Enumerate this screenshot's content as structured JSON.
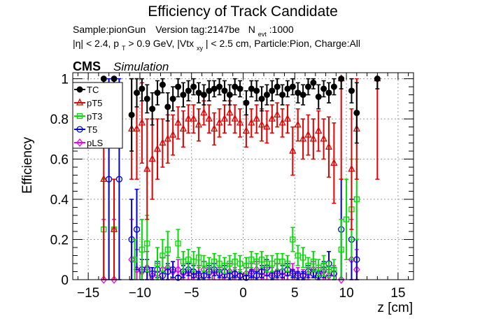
{
  "header": {
    "title": "Efficiency of Track Candidate",
    "sample_line": {
      "sample": "Sample:pionGun",
      "version": "Version tag:2147be",
      "nevt_symbol": "N",
      "nevt_sub": "evt",
      "nevt_value": ":1000"
    },
    "cuts_line": {
      "eta": "|η| < 2.4, p",
      "pt_sub": "T",
      "pt_rest": " > 0.9 GeV, |Vtx",
      "vtx_sub": "xy",
      "rest": "| < 2.5 cm, Particle:Pion, Charge:All"
    },
    "cms": "CMS",
    "simulation": "Simulation"
  },
  "chart_data": {
    "type": "scatter",
    "xlabel": "z [cm]",
    "ylabel": "Efficiency",
    "xlim": [
      -16.5,
      16.5
    ],
    "ylim": [
      0,
      1.03
    ],
    "xticks": [
      -15,
      -10,
      -5,
      0,
      5,
      10,
      15
    ],
    "xtick_labels": [
      "−15",
      "−10",
      "−5",
      "0",
      "5",
      "10",
      "15"
    ],
    "yticks": [
      0,
      0.2,
      0.4,
      0.6,
      0.8,
      1
    ],
    "ytick_labels": [
      "0",
      "0.2",
      "0.4",
      "0.6",
      "0.8",
      "1"
    ],
    "grid": true,
    "legend_position": "top-left",
    "series": [
      {
        "name": "TC",
        "color": "#000000",
        "marker": "filled-circle",
        "x": [
          -13.5,
          -12.5,
          -10.8,
          -10.3,
          -9.8,
          -9.3,
          -8.8,
          -8.3,
          -7.8,
          -7.3,
          -6.8,
          -6.3,
          -5.8,
          -5.3,
          -4.8,
          -4.3,
          -3.8,
          -3.3,
          -2.8,
          -2.3,
          -1.8,
          -1.3,
          -0.8,
          -0.3,
          0.3,
          0.8,
          1.3,
          1.8,
          2.3,
          2.8,
          3.3,
          3.8,
          4.3,
          4.8,
          5.3,
          5.8,
          6.3,
          6.8,
          7.3,
          7.8,
          8.3,
          8.8,
          9.5,
          10.5,
          11.0,
          13.0
        ],
        "y": [
          1.0,
          1.0,
          0.82,
          0.93,
          0.95,
          0.9,
          0.85,
          0.93,
          0.97,
          0.86,
          0.9,
          0.96,
          0.92,
          0.94,
          0.96,
          0.93,
          0.92,
          0.94,
          0.95,
          0.96,
          0.94,
          0.92,
          0.96,
          0.95,
          0.88,
          0.95,
          0.94,
          0.9,
          0.92,
          0.94,
          0.96,
          0.92,
          0.95,
          0.96,
          0.93,
          0.92,
          0.96,
          0.98,
          0.91,
          0.95,
          0.93,
          0.96,
          1.0,
          0.94,
          0.83,
          1.0
        ],
        "err": [
          0.05,
          0.05,
          0.18,
          0.07,
          0.06,
          0.07,
          0.08,
          0.06,
          0.04,
          0.07,
          0.06,
          0.05,
          0.06,
          0.05,
          0.04,
          0.05,
          0.05,
          0.05,
          0.04,
          0.04,
          0.05,
          0.05,
          0.04,
          0.04,
          0.06,
          0.04,
          0.05,
          0.06,
          0.05,
          0.05,
          0.04,
          0.05,
          0.04,
          0.04,
          0.05,
          0.05,
          0.04,
          0.03,
          0.06,
          0.04,
          0.05,
          0.04,
          0.05,
          0.06,
          0.15,
          0.05
        ]
      },
      {
        "name": "pT5",
        "color": "#e00000",
        "marker": "open-triangle",
        "x": [
          -13.5,
          -12.5,
          -10.8,
          -10.3,
          -9.8,
          -9.3,
          -8.8,
          -8.3,
          -7.8,
          -7.3,
          -6.8,
          -6.3,
          -5.8,
          -5.3,
          -4.8,
          -4.3,
          -3.8,
          -3.3,
          -2.8,
          -2.3,
          -1.8,
          -1.3,
          -0.8,
          -0.3,
          0.3,
          0.8,
          1.3,
          1.8,
          2.3,
          2.8,
          3.3,
          3.8,
          4.3,
          4.8,
          5.3,
          5.8,
          6.3,
          6.8,
          7.3,
          7.8,
          8.3,
          8.8,
          9.5,
          10.5,
          11.0,
          13.0
        ],
        "y": [
          0.5,
          0.25,
          0.75,
          0.75,
          0.78,
          0.55,
          0.6,
          0.65,
          0.68,
          0.7,
          0.72,
          0.78,
          0.75,
          0.8,
          0.8,
          0.77,
          0.83,
          0.8,
          0.75,
          0.78,
          0.8,
          0.83,
          0.8,
          0.78,
          0.74,
          0.78,
          0.8,
          0.77,
          0.76,
          0.8,
          0.82,
          0.78,
          0.8,
          0.64,
          0.77,
          0.7,
          0.72,
          0.7,
          0.74,
          0.7,
          0.66,
          0.58,
          1.0,
          0.55,
          0.75,
          1.0
        ],
        "err": [
          0.5,
          0.25,
          0.25,
          0.25,
          0.2,
          0.25,
          0.2,
          0.15,
          0.12,
          0.12,
          0.1,
          0.08,
          0.09,
          0.07,
          0.07,
          0.08,
          0.06,
          0.07,
          0.08,
          0.07,
          0.07,
          0.06,
          0.07,
          0.07,
          0.08,
          0.07,
          0.07,
          0.08,
          0.08,
          0.07,
          0.06,
          0.07,
          0.07,
          0.12,
          0.08,
          0.1,
          0.1,
          0.1,
          0.1,
          0.1,
          0.15,
          0.2,
          0.5,
          0.3,
          0.25,
          0.5
        ]
      },
      {
        "name": "pT3",
        "color": "#00dd00",
        "marker": "open-square",
        "x": [
          -13.5,
          -12.5,
          -10.5,
          -9.8,
          -9.3,
          -8.3,
          -7.8,
          -7.3,
          -6.3,
          -5.8,
          -5.3,
          -4.8,
          -4.3,
          -3.8,
          -3.3,
          -2.8,
          -2.3,
          -1.8,
          -1.3,
          -0.8,
          -0.3,
          0.3,
          0.8,
          1.3,
          1.8,
          2.3,
          2.8,
          3.3,
          3.8,
          4.3,
          4.8,
          5.3,
          5.8,
          6.3,
          6.8,
          7.3,
          7.8,
          8.3,
          8.8,
          9.5,
          10.0,
          10.5,
          11.0
        ],
        "y": [
          0.25,
          0.25,
          0.1,
          0.15,
          0.18,
          0.08,
          0.12,
          0.15,
          0.18,
          0.09,
          0.1,
          0.09,
          0.11,
          0.08,
          0.07,
          0.09,
          0.08,
          0.07,
          0.08,
          0.09,
          0.08,
          0.07,
          0.1,
          0.09,
          0.1,
          0.08,
          0.08,
          0.09,
          0.09,
          0.08,
          0.2,
          0.12,
          0.11,
          0.07,
          0.09,
          0.06,
          0.07,
          0.05,
          0.05,
          0.15,
          0.3,
          0.35,
          0.4
        ],
        "err": [
          0.25,
          0.25,
          0.1,
          0.15,
          0.14,
          0.08,
          0.08,
          0.09,
          0.07,
          0.05,
          0.05,
          0.05,
          0.05,
          0.04,
          0.04,
          0.04,
          0.04,
          0.04,
          0.04,
          0.04,
          0.04,
          0.04,
          0.04,
          0.04,
          0.04,
          0.04,
          0.04,
          0.04,
          0.04,
          0.04,
          0.06,
          0.05,
          0.05,
          0.04,
          0.05,
          0.04,
          0.05,
          0.04,
          0.05,
          0.15,
          0.2,
          0.25,
          0.2
        ]
      },
      {
        "name": "T5",
        "color": "#0000dd",
        "marker": "open-circle",
        "x": [
          -13.0,
          -12.0,
          -10.8,
          -10.3,
          -9.8,
          -9.3,
          -8.8,
          -8.3,
          -7.8,
          -7.3,
          -6.8,
          -6.3,
          -5.8,
          -5.3,
          -4.8,
          -4.3,
          -3.8,
          -3.3,
          -2.8,
          -2.3,
          -1.8,
          -1.3,
          -0.8,
          -0.3,
          0.3,
          0.8,
          1.3,
          1.8,
          2.3,
          2.8,
          3.3,
          3.8,
          4.3,
          4.8,
          5.3,
          5.8,
          6.3,
          6.8,
          7.3,
          7.8,
          8.3,
          8.8,
          9.5,
          10.5,
          11.0
        ],
        "y": [
          0.5,
          0.5,
          0.2,
          0.25,
          0.05,
          0.05,
          0.03,
          0.05,
          0.02,
          0.04,
          0.05,
          0.01,
          0.04,
          0.05,
          0.04,
          0.02,
          0.02,
          0.04,
          0.05,
          0.03,
          0.04,
          0.02,
          0.03,
          0.02,
          0.01,
          0.03,
          0.02,
          0.04,
          0.06,
          0.02,
          0.03,
          0.04,
          0.05,
          0.03,
          0.02,
          0.02,
          0.04,
          0.03,
          0.02,
          0.05,
          0.08,
          0.03,
          0.25,
          0.2,
          0.1
        ],
        "err": [
          0.5,
          0.5,
          0.2,
          0.2,
          0.05,
          0.05,
          0.03,
          0.04,
          0.02,
          0.04,
          0.04,
          0.01,
          0.03,
          0.03,
          0.03,
          0.02,
          0.02,
          0.03,
          0.03,
          0.02,
          0.03,
          0.02,
          0.02,
          0.02,
          0.01,
          0.02,
          0.02,
          0.03,
          0.04,
          0.02,
          0.02,
          0.03,
          0.03,
          0.02,
          0.02,
          0.02,
          0.03,
          0.02,
          0.02,
          0.04,
          0.06,
          0.03,
          0.25,
          0.2,
          0.1
        ]
      },
      {
        "name": "pLS",
        "color": "#ee00ee",
        "marker": "open-diamond",
        "x": [
          -13.5,
          -12.5,
          -10.8,
          -10.3,
          -9.8,
          -9.3,
          -8.8,
          -8.3,
          -7.8,
          -7.3,
          -6.8,
          -6.3,
          -5.8,
          -5.3,
          -4.8,
          -4.3,
          -3.8,
          -3.3,
          -2.8,
          -2.3,
          -1.8,
          -1.3,
          -0.8,
          -0.3,
          0.3,
          0.8,
          1.3,
          1.8,
          2.3,
          2.8,
          3.3,
          3.8,
          4.3,
          4.8,
          5.3,
          5.8,
          6.3,
          6.8,
          7.3,
          7.8,
          8.3,
          8.8,
          9.5,
          10.5,
          11.0
        ],
        "y": [
          0.0,
          0.0,
          0.1,
          0.05,
          0.04,
          0.06,
          0.02,
          0.03,
          0.05,
          0.06,
          0.04,
          0.05,
          0.03,
          0.04,
          0.02,
          0.03,
          0.05,
          0.03,
          0.04,
          0.03,
          0.02,
          0.04,
          0.03,
          0.02,
          0.03,
          0.04,
          0.05,
          0.02,
          0.03,
          0.03,
          0.04,
          0.02,
          0.03,
          0.04,
          0.03,
          0.02,
          0.03,
          0.05,
          0.03,
          0.04,
          0.02,
          0.03,
          0.0,
          0.1,
          0.05
        ],
        "err": [
          0.3,
          0.3,
          0.2,
          0.1,
          0.06,
          0.08,
          0.04,
          0.05,
          0.06,
          0.06,
          0.05,
          0.05,
          0.04,
          0.04,
          0.03,
          0.04,
          0.04,
          0.03,
          0.04,
          0.03,
          0.03,
          0.04,
          0.03,
          0.03,
          0.03,
          0.04,
          0.04,
          0.03,
          0.03,
          0.03,
          0.04,
          0.03,
          0.03,
          0.04,
          0.03,
          0.03,
          0.03,
          0.04,
          0.03,
          0.04,
          0.03,
          0.04,
          0.3,
          0.2,
          0.1
        ]
      }
    ]
  }
}
